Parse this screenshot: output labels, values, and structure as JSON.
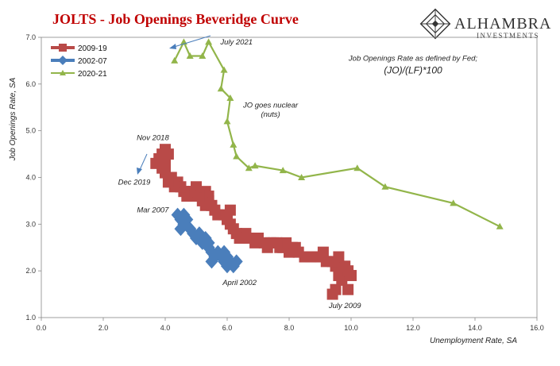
{
  "header": {
    "title_red": "JOLTS",
    "title_rest": " - Job Openings Beveridge Curve",
    "title_color": "#c00000",
    "logo_name": "ALHAMBRA",
    "logo_sub": "INVESTMENTS"
  },
  "chart_data": {
    "type": "scatter",
    "xlabel": "Unemployment Rate, SA",
    "ylabel": "Job Openings Rate, SA",
    "xlim": [
      0,
      16
    ],
    "ylim": [
      1,
      7
    ],
    "x_ticks": [
      "0.0",
      "2.0",
      "4.0",
      "6.0",
      "8.0",
      "10.0",
      "12.0",
      "14.0",
      "16.0"
    ],
    "y_ticks": [
      "1.0",
      "2.0",
      "3.0",
      "4.0",
      "5.0",
      "6.0",
      "7.0"
    ],
    "legend_position": "top-left",
    "series": [
      {
        "name": "2009-19",
        "color": "#b94a48",
        "marker": "square",
        "line": false,
        "points": [
          [
            9.4,
            1.5
          ],
          [
            9.5,
            1.6
          ],
          [
            9.9,
            1.6
          ],
          [
            9.7,
            1.8
          ],
          [
            9.6,
            1.9
          ],
          [
            9.5,
            2.1
          ],
          [
            9.9,
            2.0
          ],
          [
            10.0,
            1.9
          ],
          [
            9.8,
            2.1
          ],
          [
            9.4,
            2.2
          ],
          [
            9.6,
            2.3
          ],
          [
            9.2,
            2.2
          ],
          [
            9.0,
            2.3
          ],
          [
            9.1,
            2.4
          ],
          [
            8.9,
            2.3
          ],
          [
            8.7,
            2.3
          ],
          [
            8.5,
            2.3
          ],
          [
            8.3,
            2.4
          ],
          [
            8.2,
            2.5
          ],
          [
            8.0,
            2.4
          ],
          [
            8.1,
            2.5
          ],
          [
            7.9,
            2.6
          ],
          [
            7.8,
            2.5
          ],
          [
            7.7,
            2.5
          ],
          [
            7.5,
            2.6
          ],
          [
            7.6,
            2.6
          ],
          [
            7.4,
            2.6
          ],
          [
            7.3,
            2.5
          ],
          [
            7.2,
            2.6
          ],
          [
            7.0,
            2.7
          ],
          [
            6.9,
            2.6
          ],
          [
            6.7,
            2.7
          ],
          [
            6.6,
            2.8
          ],
          [
            6.4,
            2.7
          ],
          [
            6.3,
            2.8
          ],
          [
            6.2,
            2.9
          ],
          [
            6.1,
            3.0
          ],
          [
            6.1,
            3.3
          ],
          [
            5.9,
            3.2
          ],
          [
            6.0,
            3.1
          ],
          [
            5.7,
            3.2
          ],
          [
            5.6,
            3.3
          ],
          [
            5.5,
            3.4
          ],
          [
            5.4,
            3.5
          ],
          [
            5.3,
            3.4
          ],
          [
            5.4,
            3.6
          ],
          [
            5.2,
            3.5
          ],
          [
            5.3,
            3.7
          ],
          [
            5.1,
            3.6
          ],
          [
            5.0,
            3.8
          ],
          [
            4.9,
            3.7
          ],
          [
            4.9,
            3.6
          ],
          [
            4.8,
            3.7
          ],
          [
            4.7,
            3.6
          ],
          [
            4.6,
            3.7
          ],
          [
            4.5,
            3.8
          ],
          [
            4.4,
            3.9
          ],
          [
            4.3,
            3.8
          ],
          [
            4.2,
            4.0
          ],
          [
            4.1,
            3.9
          ],
          [
            4.0,
            4.1
          ],
          [
            3.9,
            4.2
          ],
          [
            4.0,
            4.4
          ],
          [
            4.0,
            4.3
          ],
          [
            4.1,
            4.5
          ],
          [
            4.0,
            4.6
          ],
          [
            3.9,
            4.5
          ],
          [
            3.8,
            4.4
          ],
          [
            3.7,
            4.3
          ]
        ]
      },
      {
        "name": "2002-07",
        "color": "#4a7ebb",
        "marker": "diamond",
        "line": false,
        "points": [
          [
            4.4,
            3.2
          ],
          [
            4.5,
            3.1
          ],
          [
            4.6,
            3.0
          ],
          [
            4.5,
            2.9
          ],
          [
            4.7,
            3.1
          ],
          [
            4.6,
            3.2
          ],
          [
            4.8,
            2.9
          ],
          [
            4.9,
            2.8
          ],
          [
            5.0,
            2.7
          ],
          [
            5.1,
            2.8
          ],
          [
            5.2,
            2.6
          ],
          [
            5.3,
            2.7
          ],
          [
            5.4,
            2.6
          ],
          [
            5.4,
            2.5
          ],
          [
            5.5,
            2.4
          ],
          [
            5.6,
            2.3
          ],
          [
            5.5,
            2.2
          ],
          [
            5.7,
            2.4
          ],
          [
            5.8,
            2.3
          ],
          [
            5.9,
            2.2
          ],
          [
            5.9,
            2.4
          ],
          [
            6.0,
            2.1
          ],
          [
            6.1,
            2.2
          ],
          [
            6.2,
            2.1
          ],
          [
            6.0,
            2.3
          ],
          [
            6.3,
            2.2
          ]
        ]
      },
      {
        "name": "2020-21",
        "color": "#92b54a",
        "marker": "triangle",
        "line": true,
        "points": [
          [
            14.8,
            2.95
          ],
          [
            13.3,
            3.45
          ],
          [
            11.1,
            3.8
          ],
          [
            10.2,
            4.2
          ],
          [
            8.4,
            4.0
          ],
          [
            7.8,
            4.15
          ],
          [
            6.9,
            4.25
          ],
          [
            6.7,
            4.2
          ],
          [
            6.3,
            4.45
          ],
          [
            6.2,
            4.7
          ],
          [
            6.0,
            5.2
          ],
          [
            6.1,
            5.7
          ],
          [
            5.8,
            5.9
          ],
          [
            5.9,
            6.3
          ],
          [
            5.4,
            6.9
          ],
          [
            5.2,
            6.6
          ],
          [
            4.8,
            6.6
          ],
          [
            4.6,
            6.9
          ],
          [
            4.3,
            6.5
          ]
        ]
      }
    ],
    "annotations": [
      {
        "text": "July 2021",
        "x": 6.3,
        "y": 6.85
      },
      {
        "text": "JO goes nuclear",
        "x": 7.4,
        "y": 5.5
      },
      {
        "text": "(nuts)",
        "x": 7.4,
        "y": 5.3
      },
      {
        "text": "Job Openings Rate as defined by Fed;",
        "x": 12.0,
        "y": 6.5
      },
      {
        "text": "(JO)/(LF)*100",
        "x": 12.0,
        "y": 6.23
      },
      {
        "text": "Nov 2018",
        "x": 3.6,
        "y": 4.8
      },
      {
        "text": "Dec 2019",
        "x": 3.0,
        "y": 3.85
      },
      {
        "text": "Mar 2007",
        "x": 3.6,
        "y": 3.25
      },
      {
        "text": "April 2002",
        "x": 6.4,
        "y": 1.7
      },
      {
        "text": "July 2009",
        "x": 9.8,
        "y": 1.2
      }
    ]
  }
}
